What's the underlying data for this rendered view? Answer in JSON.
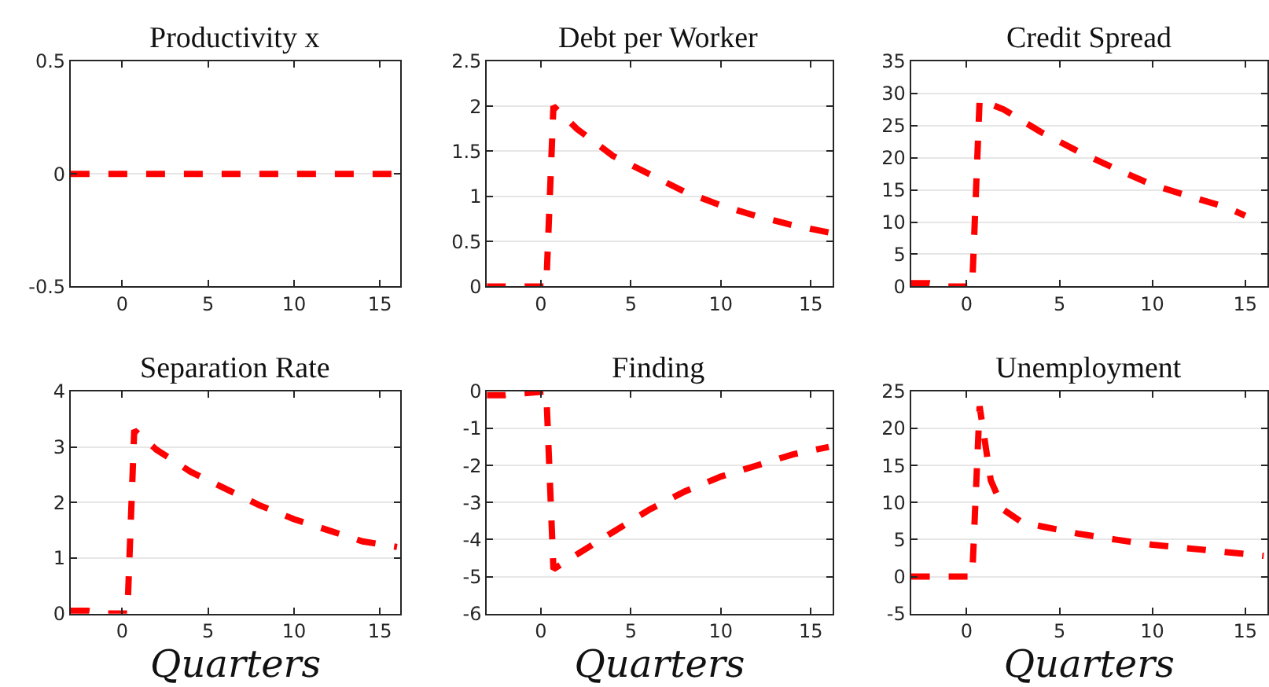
{
  "chart_data": [
    {
      "type": "line",
      "title": "Productivity x",
      "x": [
        -3,
        -2,
        -1,
        0.3,
        0.7,
        2,
        4,
        6,
        8,
        10,
        12,
        14,
        16
      ],
      "series": [
        {
          "color": "#ff0000",
          "values": [
            0,
            0,
            0,
            0,
            0,
            0,
            0,
            0,
            0,
            0,
            0,
            0,
            0
          ]
        }
      ],
      "xlim": [
        -3,
        16.2
      ],
      "xticks": [
        0,
        5,
        10,
        15
      ],
      "ylim": [
        -0.5,
        0.5
      ],
      "yticks": [
        -0.5,
        0,
        0.5
      ],
      "grid": "y",
      "line_style": "dashed"
    },
    {
      "type": "line",
      "title": "Debt per Worker",
      "x": [
        -3,
        -2,
        -1,
        0.3,
        0.7,
        2,
        4,
        6,
        8,
        10,
        12,
        14,
        16
      ],
      "series": [
        {
          "color": "#ff0000",
          "values": [
            0,
            0,
            0,
            0,
            2.0,
            1.75,
            1.45,
            1.25,
            1.05,
            0.9,
            0.78,
            0.68,
            0.6
          ]
        }
      ],
      "xlim": [
        -3,
        16.2
      ],
      "xticks": [
        0,
        5,
        10,
        15
      ],
      "ylim": [
        0,
        2.5
      ],
      "yticks": [
        0,
        0.5,
        1,
        1.5,
        2,
        2.5
      ],
      "grid": "y",
      "line_style": "dashed"
    },
    {
      "type": "line",
      "title": "Credit Spread",
      "x": [
        -3,
        -2,
        -1,
        0.3,
        0.7,
        2,
        4,
        6,
        8,
        10,
        12,
        14,
        15
      ],
      "series": [
        {
          "color": "#ff0000",
          "values": [
            0.5,
            0.5,
            0,
            0,
            29,
            27.5,
            24,
            21,
            18.3,
            15.8,
            14,
            12.3,
            11
          ]
        }
      ],
      "xlim": [
        -3,
        16.2
      ],
      "xticks": [
        0,
        5,
        10,
        15
      ],
      "ylim": [
        0,
        35
      ],
      "yticks": [
        0,
        5,
        10,
        15,
        20,
        25,
        30,
        35
      ],
      "grid": "y",
      "line_style": "dashed"
    },
    {
      "type": "line",
      "title": "Separation Rate",
      "xlabel": "Quarters",
      "x": [
        -3,
        -2,
        -1,
        0.3,
        0.7,
        2,
        4,
        6,
        8,
        10,
        12,
        14,
        16
      ],
      "series": [
        {
          "color": "#ff0000",
          "values": [
            0.05,
            0.05,
            0,
            0,
            3.3,
            2.95,
            2.55,
            2.25,
            1.95,
            1.7,
            1.5,
            1.3,
            1.2
          ]
        }
      ],
      "xlim": [
        -3,
        16.2
      ],
      "xticks": [
        0,
        5,
        10,
        15
      ],
      "ylim": [
        0,
        4
      ],
      "yticks": [
        0,
        1,
        2,
        3,
        4
      ],
      "grid": "y",
      "line_style": "dashed"
    },
    {
      "type": "line",
      "title": "Finding",
      "xlabel": "Quarters",
      "x": [
        -3,
        -2,
        -1,
        0.3,
        0.7,
        2,
        4,
        6,
        8,
        10,
        12,
        14,
        16
      ],
      "series": [
        {
          "color": "#ff0000",
          "values": [
            -0.1,
            -0.1,
            -0.05,
            0,
            -4.8,
            -4.4,
            -3.8,
            -3.2,
            -2.7,
            -2.3,
            -2.0,
            -1.7,
            -1.5
          ]
        }
      ],
      "xlim": [
        -3,
        16.2
      ],
      "xticks": [
        0,
        5,
        10,
        15
      ],
      "ylim": [
        -6,
        0
      ],
      "yticks": [
        -6,
        -5,
        -4,
        -3,
        -2,
        -1,
        0
      ],
      "grid": "y",
      "line_style": "dashed"
    },
    {
      "type": "line",
      "title": "Unemployment",
      "xlabel": "Quarters",
      "x": [
        -3,
        -2,
        -1,
        0.3,
        0.7,
        1.3,
        2,
        3,
        4,
        6,
        8,
        10,
        12,
        14,
        16
      ],
      "series": [
        {
          "color": "#ff0000",
          "values": [
            0,
            0,
            0,
            0,
            23,
            13,
            9,
            7.3,
            6.8,
            5.8,
            5,
            4.3,
            3.8,
            3.3,
            2.8
          ]
        }
      ],
      "xlim": [
        -3,
        16.2
      ],
      "xticks": [
        0,
        5,
        10,
        15
      ],
      "ylim": [
        -5,
        25
      ],
      "yticks": [
        -5,
        0,
        5,
        10,
        15,
        20,
        25
      ],
      "grid": "y",
      "line_style": "dashed"
    }
  ]
}
